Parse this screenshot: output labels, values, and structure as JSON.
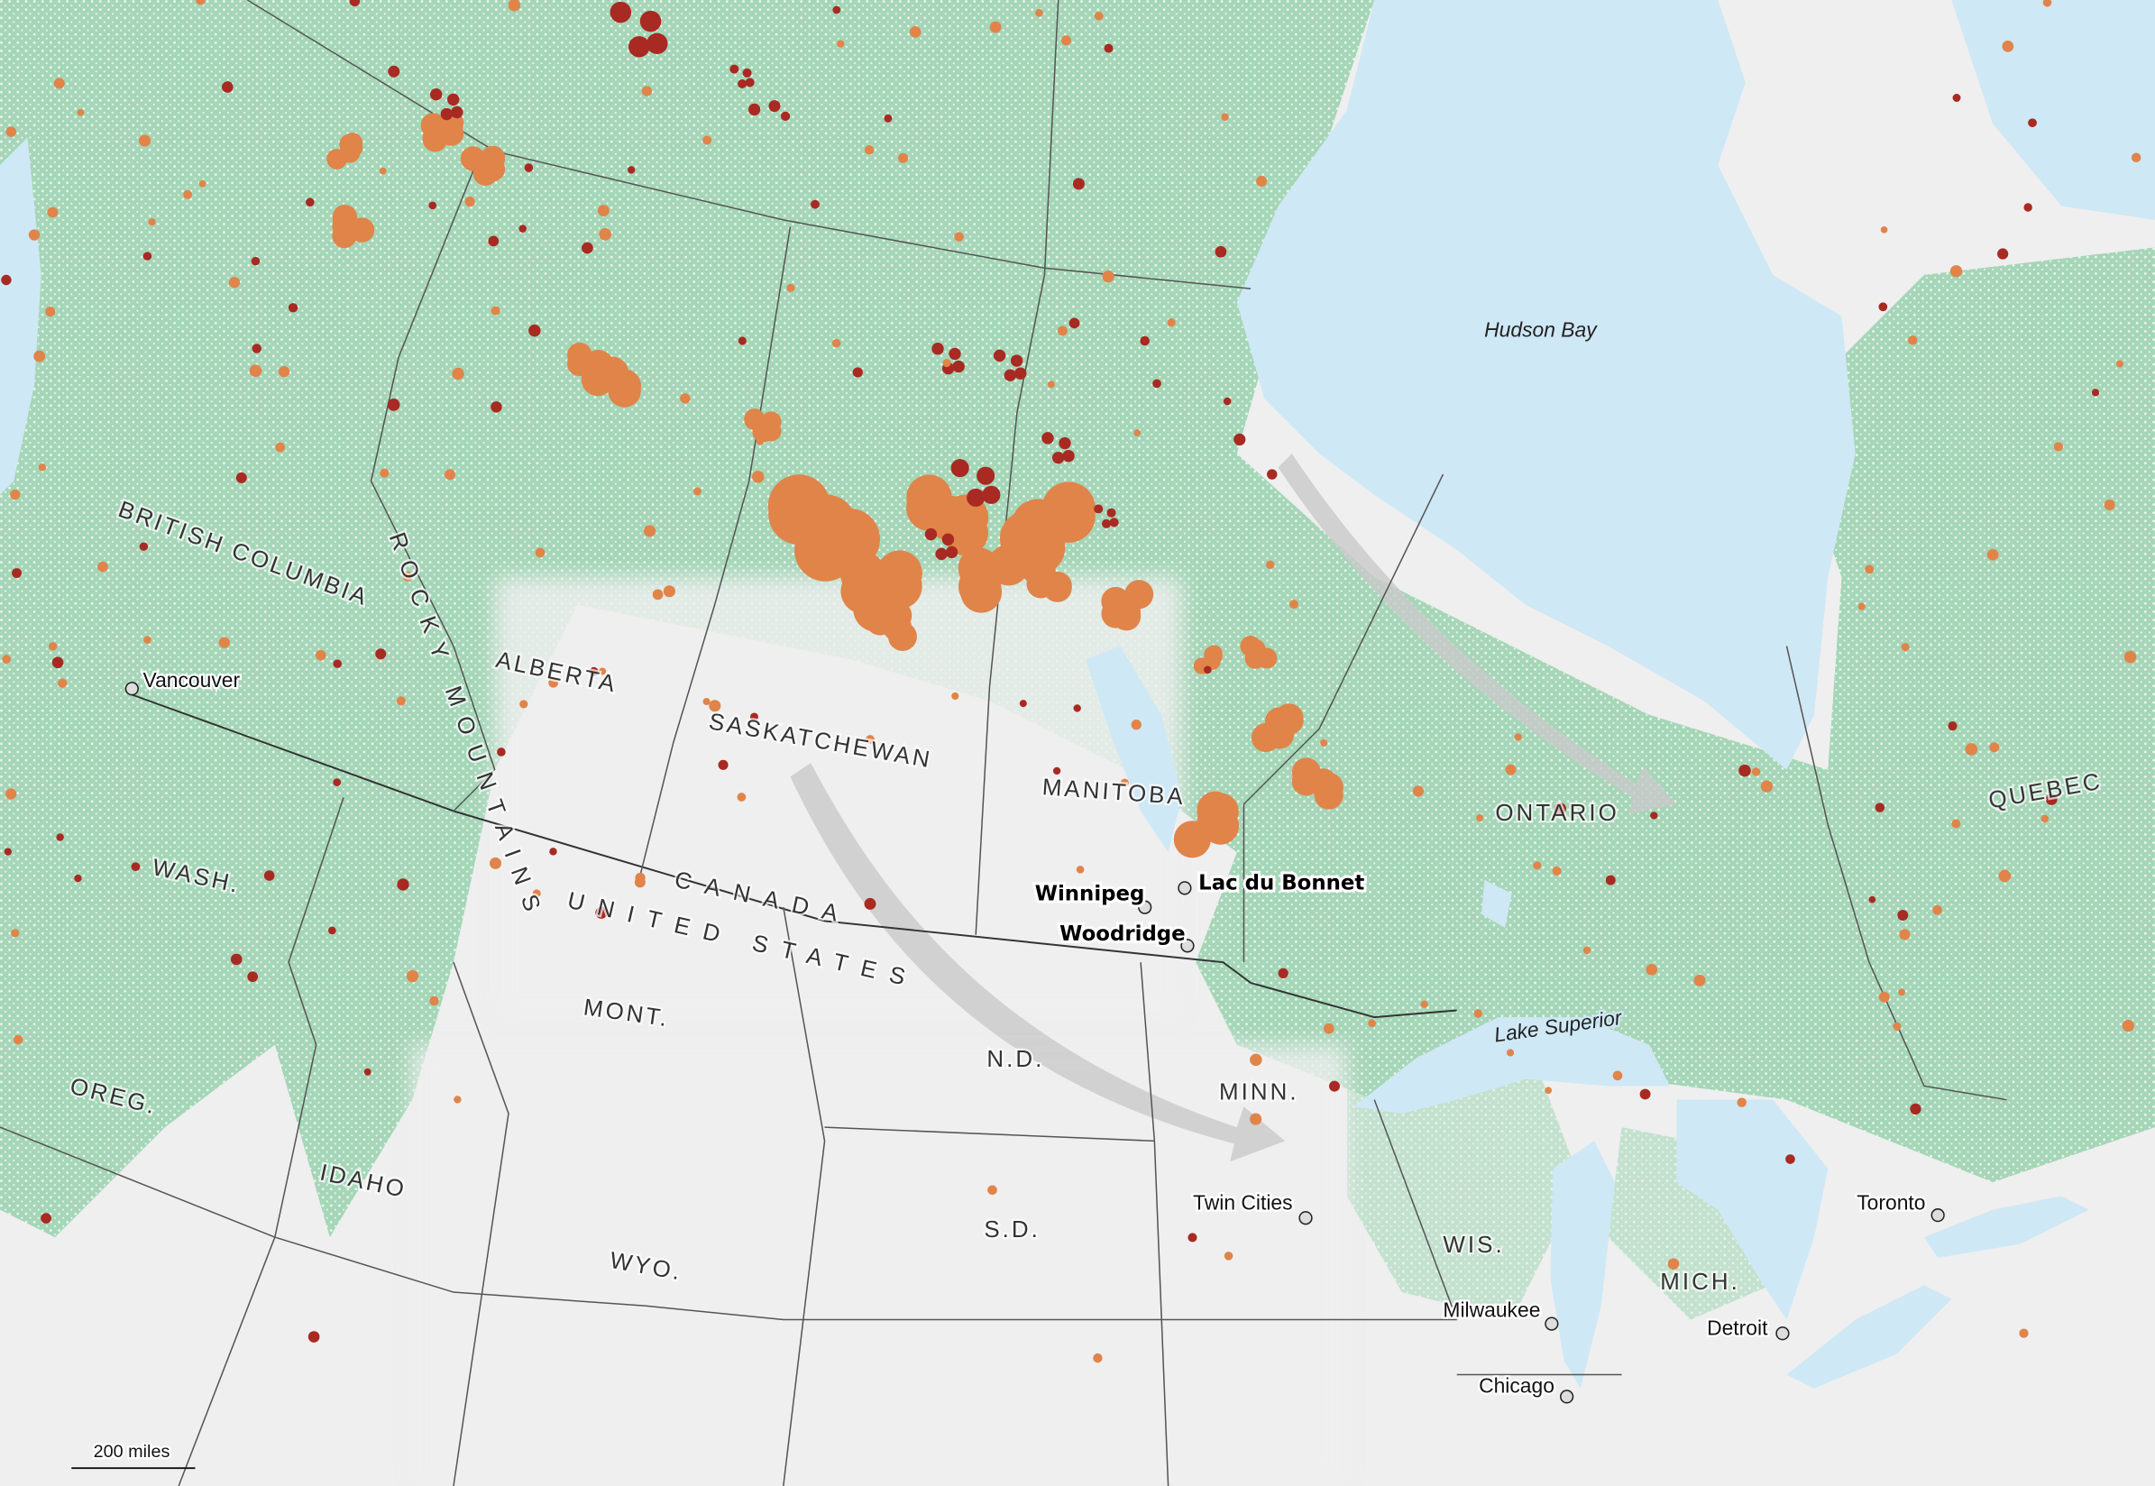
{
  "colors": {
    "land": "#efefef",
    "water": "#cfe8f5",
    "forest": "#8fcfa6",
    "fire_orange": "#e0844a",
    "fire_red": "#a82a22",
    "arrow": "#c8c8c8"
  },
  "labels": {
    "water": {
      "hudson_bay": "Hudson Bay",
      "lake_superior": "Lake Superior"
    },
    "regions": {
      "bc": "BRITISH COLUMBIA",
      "rockies": "ROCKY MOUNTAINS",
      "alberta": "ALBERTA",
      "saskatchewan": "SASKATCHEWAN",
      "manitoba": "MANITOBA",
      "ontario": "ONTARIO",
      "quebec": "QUEBEC",
      "canada": "CANADA",
      "us": "UNITED STATES",
      "wash": "WASH.",
      "oreg": "OREG.",
      "idaho": "IDAHO",
      "mont": "MONT.",
      "wyo": "WYO.",
      "nd": "N.D.",
      "sd": "S.D.",
      "minn": "MINN.",
      "wis": "WIS.",
      "mich": "MICH."
    },
    "cities": {
      "vancouver": "Vancouver",
      "winnipeg": "Winnipeg",
      "lac_du_bonnet": "Lac du Bonnet",
      "woodridge": "Woodridge",
      "twin_cities": "Twin Cities",
      "milwaukee": "Milwaukee",
      "chicago": "Chicago",
      "detroit": "Detroit",
      "toronto": "Toronto"
    }
  },
  "scale_bar": {
    "label": "200 miles"
  }
}
